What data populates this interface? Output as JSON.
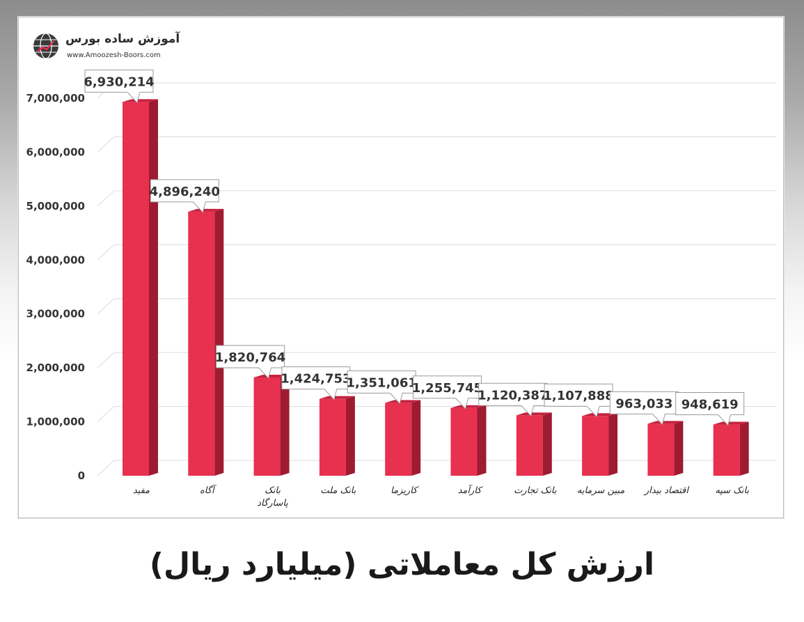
{
  "logo": {
    "name": "آموزش ساده بورس",
    "site": "www.Amoozesh-Boors.com",
    "icon": "globe-chart-icon"
  },
  "chart_data": {
    "type": "bar",
    "title": "ارزش کل معاملاتی (میلیارد ریال)",
    "categories": [
      "مفید",
      "آگاه",
      "بانک پاسارگاد",
      "بانک ملت",
      "کاریزما",
      "کارآمد",
      "بانک تجارت",
      "مبین سرمایه",
      "اقتصاد بیدار",
      "بانک سپه"
    ],
    "values": [
      6930214,
      4896240,
      1820764,
      1424753,
      1351061,
      1255745,
      1120387,
      1107888,
      963033,
      948619
    ],
    "value_labels": [
      "6,930,214",
      "4,896,240",
      "1,820,764",
      "1,424,753",
      "1,351,061",
      "1,255,745",
      "1,120,387",
      "1,107,888",
      "963,033",
      "948,619"
    ],
    "yticks": [
      "0",
      "1,000,000",
      "2,000,000",
      "3,000,000",
      "4,000,000",
      "5,000,000",
      "6,000,000",
      "7,000,000"
    ],
    "ylim": [
      0,
      7000000
    ],
    "grid": true,
    "colors": {
      "bar_front": "#e8304f",
      "bar_side": "#9e1b32",
      "bar_top": "#c4233f",
      "grid": "#dcdcdc"
    }
  }
}
